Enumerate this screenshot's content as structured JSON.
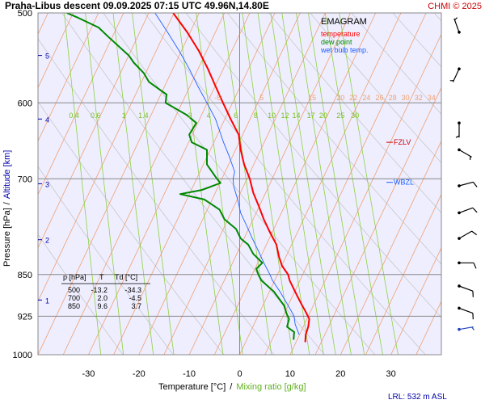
{
  "header": {
    "title": "Praha-Libus   descent   09.09.2025 07:15 UTC   49.96N,14.80E",
    "credit": "CHMI © 2025"
  },
  "legend": {
    "heading": "EMAGRAM",
    "items": [
      {
        "label": "temperature",
        "color": "#ff0000"
      },
      {
        "label": "dew point",
        "color": "#008800"
      },
      {
        "label": "wet bulb temp.",
        "color": "#2060ff"
      }
    ]
  },
  "colors": {
    "background": "#eeeeff",
    "isotherm": "#f0a070",
    "dry_adiabat": "#c8c8c8",
    "mixing_ratio": "#90d040",
    "grid": "#888888",
    "altitude": "#0000aa"
  },
  "levels_table": {
    "headers": [
      "p [hPa]",
      "T",
      "Td [°C]"
    ],
    "rows": [
      [
        "500",
        "-13.2",
        "-34.3"
      ],
      [
        "700",
        "2.0",
        "-4.5"
      ],
      [
        "850",
        "9.6",
        "3.7"
      ]
    ]
  },
  "markers": {
    "fzlv": {
      "label": "FZLV",
      "pressure": 650
    },
    "wbzl": {
      "label": "WBZL",
      "pressure": 705
    }
  },
  "footer": {
    "lrl": "LRL: 532 m ASL"
  },
  "chart_data": {
    "type": "line",
    "ylabel_pressure": "Pressure [hPa]",
    "ylabel_sep": "/",
    "ylabel_altitude": "Altitude [km]",
    "xlabel_temperature": "Temperature [°C]",
    "xlabel_sep": "/",
    "xlabel_mixing": "Mixing ratio [g/kg]",
    "x_range": [
      -40,
      40
    ],
    "y_range_hpa": [
      500,
      1000
    ],
    "log_pressure": true,
    "x_ticks": [
      -30,
      -20,
      -10,
      0,
      10,
      20,
      30
    ],
    "y_ticks": [
      500,
      600,
      700,
      850,
      925,
      1000
    ],
    "altitude_ticks": [
      {
        "km": 1,
        "p": 895
      },
      {
        "km": 2,
        "p": 792
      },
      {
        "km": 3,
        "p": 707
      },
      {
        "km": 4,
        "p": 620
      },
      {
        "km": 5,
        "p": 545
      }
    ],
    "isotherm_labels": [
      {
        "t": -5,
        "p": 590,
        "text": "-5"
      },
      {
        "t": 5,
        "p": 590,
        "text": "5"
      },
      {
        "t": 15,
        "p": 590,
        "text": "15"
      },
      {
        "t": 20,
        "p": 590,
        "text": "20"
      },
      {
        "t": 22,
        "p": 590,
        "text": "22"
      },
      {
        "t": 24,
        "p": 590,
        "text": "24"
      },
      {
        "t": 26,
        "p": 590,
        "text": "26"
      },
      {
        "t": 28,
        "p": 590,
        "text": "28"
      },
      {
        "t": 30,
        "p": 590,
        "text": "30"
      },
      {
        "t": 32,
        "p": 590,
        "text": "32"
      },
      {
        "t": 34,
        "p": 590,
        "text": "34"
      }
    ],
    "mixing_ratio_labels": [
      {
        "w": 0.4,
        "text": "0.4"
      },
      {
        "w": 0.6,
        "text": "0.6"
      },
      {
        "w": 1,
        "text": "1"
      },
      {
        "w": 1.4,
        "text": "1.4"
      },
      {
        "w": 3,
        "text": "3"
      },
      {
        "w": 4,
        "text": "4"
      },
      {
        "w": 6,
        "text": "6"
      },
      {
        "w": 8,
        "text": "8"
      },
      {
        "w": 10,
        "text": "10"
      },
      {
        "w": 12,
        "text": "12"
      },
      {
        "w": 14,
        "text": "14"
      },
      {
        "w": 17,
        "text": "17"
      },
      {
        "w": 20,
        "text": "20"
      },
      {
        "w": 25,
        "text": "25"
      },
      {
        "w": 30,
        "text": "30"
      }
    ],
    "series": [
      {
        "name": "temperature",
        "color": "#ff0000",
        "points": [
          [
            975,
            13.0
          ],
          [
            960,
            13.1
          ],
          [
            945,
            13.6
          ],
          [
            930,
            13.8
          ],
          [
            915,
            13.0
          ],
          [
            900,
            12.1
          ],
          [
            880,
            11.0
          ],
          [
            860,
            9.9
          ],
          [
            850,
            9.6
          ],
          [
            835,
            8.4
          ],
          [
            820,
            7.8
          ],
          [
            800,
            7.3
          ],
          [
            780,
            6.0
          ],
          [
            760,
            4.8
          ],
          [
            740,
            3.8
          ],
          [
            720,
            2.7
          ],
          [
            700,
            2.0
          ],
          [
            680,
            0.9
          ],
          [
            660,
            0.2
          ],
          [
            640,
            -0.2
          ],
          [
            620,
            -1.8
          ],
          [
            600,
            -3.3
          ],
          [
            580,
            -4.8
          ],
          [
            560,
            -6.3
          ],
          [
            540,
            -8.1
          ],
          [
            520,
            -10.4
          ],
          [
            500,
            -13.2
          ]
        ]
      },
      {
        "name": "dew point",
        "color": "#008800",
        "points": [
          [
            970,
            10.7
          ],
          [
            955,
            10.8
          ],
          [
            945,
            9.4
          ],
          [
            930,
            9.8
          ],
          [
            920,
            9.3
          ],
          [
            905,
            8.8
          ],
          [
            880,
            6.8
          ],
          [
            860,
            4.3
          ],
          [
            850,
            3.7
          ],
          [
            840,
            3.3
          ],
          [
            830,
            4.5
          ],
          [
            815,
            2.7
          ],
          [
            800,
            1.7
          ],
          [
            790,
            0.2
          ],
          [
            775,
            -0.7
          ],
          [
            760,
            -3.0
          ],
          [
            745,
            -4.0
          ],
          [
            730,
            -7.0
          ],
          [
            722,
            -11.8
          ],
          [
            716,
            -7.5
          ],
          [
            706,
            -3.8
          ],
          [
            700,
            -4.5
          ],
          [
            680,
            -6.5
          ],
          [
            660,
            -6.5
          ],
          [
            650,
            -9.5
          ],
          [
            640,
            -10.0
          ],
          [
            625,
            -8.6
          ],
          [
            615,
            -10.5
          ],
          [
            600,
            -14.7
          ],
          [
            590,
            -14.5
          ],
          [
            575,
            -18.0
          ],
          [
            565,
            -19.0
          ],
          [
            553,
            -21.0
          ],
          [
            545,
            -22.0
          ],
          [
            535,
            -24.0
          ],
          [
            525,
            -26.0
          ],
          [
            515,
            -28.0
          ],
          [
            505,
            -32.0
          ],
          [
            500,
            -34.3
          ]
        ]
      },
      {
        "name": "wet bulb temp.",
        "color": "#2060ff",
        "points": [
          [
            960,
            11.8
          ],
          [
            940,
            11.0
          ],
          [
            925,
            10.8
          ],
          [
            900,
            9.3
          ],
          [
            880,
            8.0
          ],
          [
            860,
            6.5
          ],
          [
            850,
            6.0
          ],
          [
            830,
            4.8
          ],
          [
            810,
            3.7
          ],
          [
            790,
            2.5
          ],
          [
            770,
            1.4
          ],
          [
            750,
            0.2
          ],
          [
            730,
            -0.4
          ],
          [
            710,
            -1.2
          ],
          [
            700,
            -1.3
          ],
          [
            690,
            -1.0
          ],
          [
            670,
            -2.0
          ],
          [
            650,
            -3.2
          ],
          [
            620,
            -4.8
          ],
          [
            600,
            -6.5
          ],
          [
            580,
            -8.3
          ],
          [
            560,
            -10.0
          ],
          [
            540,
            -12.0
          ],
          [
            520,
            -14.3
          ],
          [
            500,
            -16.8
          ]
        ]
      }
    ],
    "wind_barbs": [
      {
        "p": 520,
        "dir": 340,
        "speed": 5
      },
      {
        "p": 560,
        "dir": 205,
        "speed": 5
      },
      {
        "p": 625,
        "dir": 180,
        "speed": 5
      },
      {
        "p": 660,
        "dir": 120,
        "speed": 5
      },
      {
        "p": 710,
        "dir": 75,
        "speed": 10
      },
      {
        "p": 750,
        "dir": 70,
        "speed": 10
      },
      {
        "p": 790,
        "dir": 60,
        "speed": 10
      },
      {
        "p": 830,
        "dir": 90,
        "speed": 10
      },
      {
        "p": 870,
        "dir": 110,
        "speed": 10
      },
      {
        "p": 910,
        "dir": 110,
        "speed": 10
      },
      {
        "p": 950,
        "dir": 80,
        "speed": 5
      }
    ]
  }
}
